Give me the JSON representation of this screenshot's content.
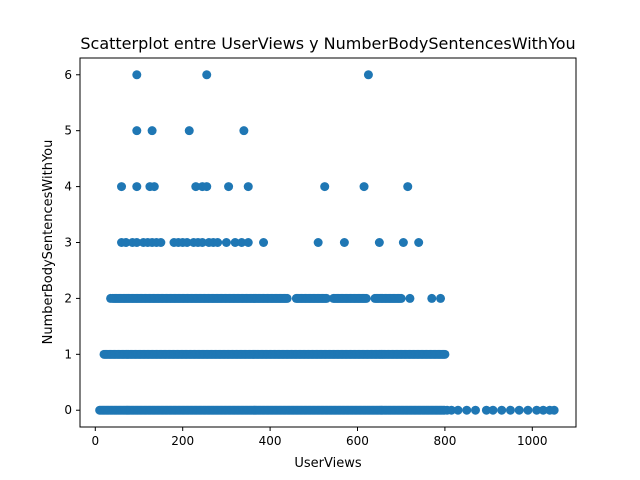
{
  "chart_data": {
    "type": "scatter",
    "title": "Scatterplot entre UserViews y NumberBodySentencesWithYou",
    "xlabel": "UserViews",
    "ylabel": "NumberBodySentencesWithYou",
    "xlim": [
      -35,
      1100
    ],
    "ylim": [
      -0.3,
      6.3
    ],
    "xticks": [
      0,
      200,
      400,
      600,
      800,
      1000
    ],
    "yticks": [
      0,
      1,
      2,
      3,
      4,
      5,
      6
    ],
    "marker_color": "#1f77b4",
    "grid": false,
    "series": [
      {
        "bands": [
          {
            "y": 0,
            "ranges": [
              [
                10,
                800
              ]
            ],
            "extra_x": [
              805,
              815,
              830,
              850,
              870,
              895,
              910,
              930,
              950,
              970,
              990,
              1010,
              1025,
              1040,
              1050
            ]
          },
          {
            "y": 1,
            "ranges": [
              [
                20,
                800
              ]
            ],
            "extra_x": []
          },
          {
            "y": 2,
            "ranges": [
              [
                40,
                440
              ],
              [
                460,
                530
              ],
              [
                545,
                620
              ],
              [
                640,
                700
              ]
            ],
            "extra_x": [
              35,
              720,
              770,
              790
            ]
          }
        ],
        "points": [
          {
            "x": 60,
            "y": 3
          },
          {
            "x": 70,
            "y": 3
          },
          {
            "x": 85,
            "y": 3
          },
          {
            "x": 95,
            "y": 3
          },
          {
            "x": 110,
            "y": 3
          },
          {
            "x": 120,
            "y": 3
          },
          {
            "x": 130,
            "y": 3
          },
          {
            "x": 140,
            "y": 3
          },
          {
            "x": 150,
            "y": 3
          },
          {
            "x": 180,
            "y": 3
          },
          {
            "x": 190,
            "y": 3
          },
          {
            "x": 200,
            "y": 3
          },
          {
            "x": 210,
            "y": 3
          },
          {
            "x": 225,
            "y": 3
          },
          {
            "x": 235,
            "y": 3
          },
          {
            "x": 245,
            "y": 3
          },
          {
            "x": 260,
            "y": 3
          },
          {
            "x": 270,
            "y": 3
          },
          {
            "x": 280,
            "y": 3
          },
          {
            "x": 300,
            "y": 3
          },
          {
            "x": 320,
            "y": 3
          },
          {
            "x": 335,
            "y": 3
          },
          {
            "x": 350,
            "y": 3
          },
          {
            "x": 385,
            "y": 3
          },
          {
            "x": 510,
            "y": 3
          },
          {
            "x": 570,
            "y": 3
          },
          {
            "x": 650,
            "y": 3
          },
          {
            "x": 705,
            "y": 3
          },
          {
            "x": 740,
            "y": 3
          },
          {
            "x": 60,
            "y": 4
          },
          {
            "x": 95,
            "y": 4
          },
          {
            "x": 125,
            "y": 4
          },
          {
            "x": 135,
            "y": 4
          },
          {
            "x": 230,
            "y": 4
          },
          {
            "x": 245,
            "y": 4
          },
          {
            "x": 255,
            "y": 4
          },
          {
            "x": 305,
            "y": 4
          },
          {
            "x": 350,
            "y": 4
          },
          {
            "x": 525,
            "y": 4
          },
          {
            "x": 615,
            "y": 4
          },
          {
            "x": 715,
            "y": 4
          },
          {
            "x": 95,
            "y": 5
          },
          {
            "x": 130,
            "y": 5
          },
          {
            "x": 215,
            "y": 5
          },
          {
            "x": 340,
            "y": 5
          },
          {
            "x": 95,
            "y": 6
          },
          {
            "x": 255,
            "y": 6
          },
          {
            "x": 625,
            "y": 6
          }
        ]
      }
    ]
  }
}
